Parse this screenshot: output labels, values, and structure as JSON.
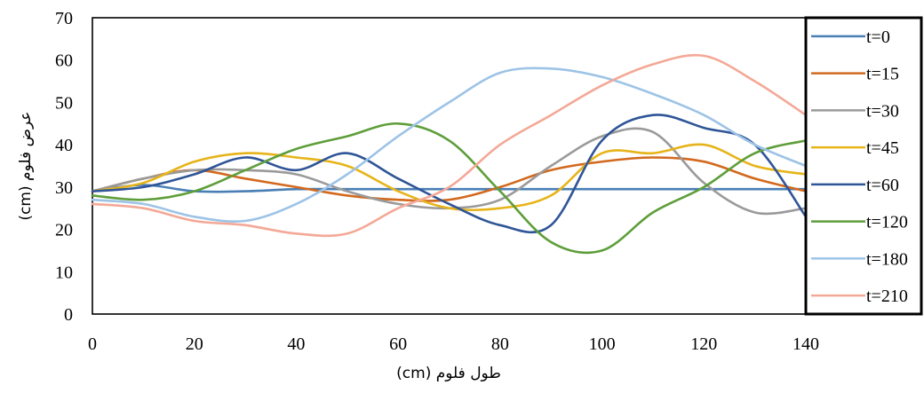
{
  "chart_data": {
    "type": "line",
    "xlabel": "طول فلوم (cm)",
    "ylabel": "عرض فلوم (cm)",
    "xlim": [
      0,
      140
    ],
    "ylim": [
      0,
      70
    ],
    "xticks": [
      "0",
      "20",
      "40",
      "60",
      "80",
      "100",
      "120",
      "140"
    ],
    "yticks": [
      "0",
      "10",
      "20",
      "30",
      "40",
      "50",
      "60",
      "70"
    ],
    "grid": false,
    "legend_position": "right",
    "x": [
      0,
      10,
      20,
      30,
      40,
      50,
      60,
      70,
      80,
      90,
      100,
      110,
      120,
      130,
      140
    ],
    "series": [
      {
        "name": "t=0",
        "color": "#4a7fb5",
        "values": [
          29,
          30.5,
          29,
          29,
          29.5,
          29.5,
          29.5,
          29.5,
          29.5,
          29.5,
          29.5,
          29.5,
          29.5,
          29.5,
          29.5
        ]
      },
      {
        "name": "t=15",
        "color": "#d2691e",
        "values": [
          29,
          32,
          34,
          32,
          30,
          28,
          27,
          27,
          30,
          34,
          36,
          37,
          36,
          32,
          29
        ]
      },
      {
        "name": "t=30",
        "color": "#9a9a9a",
        "values": [
          29,
          32,
          34,
          34,
          33,
          29,
          26,
          25,
          27,
          35,
          42,
          43,
          31,
          24,
          25
        ]
      },
      {
        "name": "t=45",
        "color": "#e6b419",
        "values": [
          29,
          31,
          36,
          38,
          37,
          35,
          29,
          25,
          25,
          28,
          38,
          38,
          40,
          35,
          33
        ]
      },
      {
        "name": "t=60",
        "color": "#2f5597",
        "values": [
          29,
          30,
          33,
          37,
          34,
          38,
          32,
          26,
          21,
          21,
          41,
          47,
          44,
          40,
          23
        ]
      },
      {
        "name": "t=120",
        "color": "#5e9e3a",
        "values": [
          28,
          27,
          29,
          34,
          39,
          42,
          45,
          41,
          29,
          17,
          15,
          24,
          30,
          38,
          41
        ]
      },
      {
        "name": "t=180",
        "color": "#9dc3e6",
        "values": [
          27,
          26,
          23,
          22,
          26,
          33,
          42,
          50,
          57,
          58,
          56,
          52,
          47,
          40,
          35
        ]
      },
      {
        "name": "t=210",
        "color": "#f4a896",
        "values": [
          26,
          25,
          22,
          21,
          19,
          19,
          25,
          30,
          40,
          47,
          54,
          59,
          61,
          55,
          47
        ]
      }
    ]
  }
}
